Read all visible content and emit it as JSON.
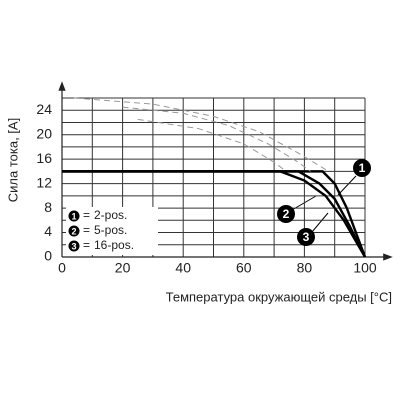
{
  "chart_data": {
    "type": "line",
    "y_label": "Сила тока, [A]",
    "x_label": "Температура окружающей среды [°C]",
    "xlim": [
      0,
      100
    ],
    "ylim": [
      0,
      26
    ],
    "xticks": [
      0,
      20,
      40,
      60,
      80,
      100
    ],
    "yticks": [
      0,
      4,
      8,
      12,
      16,
      20,
      24
    ],
    "xminor": [
      10,
      30,
      50,
      70,
      90
    ],
    "yminor": [
      2,
      6,
      10,
      14,
      18,
      22,
      26
    ],
    "grid": true,
    "legend_separator": "=",
    "series": [
      {
        "name": "2-pos.",
        "label": "1",
        "color": "#000000",
        "style": "solid",
        "x": [
          0,
          86,
          90,
          94,
          97,
          100
        ],
        "values": [
          14,
          14,
          12,
          8,
          4,
          0
        ]
      },
      {
        "name": "5-pos.",
        "label": "2",
        "color": "#000000",
        "style": "solid",
        "x": [
          0,
          78,
          85,
          90,
          95,
          100
        ],
        "values": [
          14,
          14,
          12,
          9.5,
          5,
          0
        ]
      },
      {
        "name": "16-pos.",
        "label": "3",
        "color": "#000000",
        "style": "solid",
        "x": [
          0,
          72,
          80,
          87,
          93,
          100
        ],
        "values": [
          14,
          14,
          12.5,
          10,
          6,
          0
        ]
      },
      {
        "color": "#999999",
        "style": "dashed",
        "x": [
          4,
          30,
          50,
          65,
          78,
          88
        ],
        "values": [
          26,
          25,
          23,
          20.5,
          17,
          14
        ]
      },
      {
        "color": "#999999",
        "style": "dashed",
        "x": [
          20,
          40,
          55,
          68,
          78,
          82
        ],
        "values": [
          24.5,
          23.5,
          21.5,
          18.5,
          15.5,
          14
        ]
      },
      {
        "color": "#999999",
        "style": "dashed",
        "x": [
          25,
          45,
          60,
          70,
          74
        ],
        "values": [
          22.5,
          21,
          18.5,
          15.5,
          14
        ]
      }
    ]
  }
}
